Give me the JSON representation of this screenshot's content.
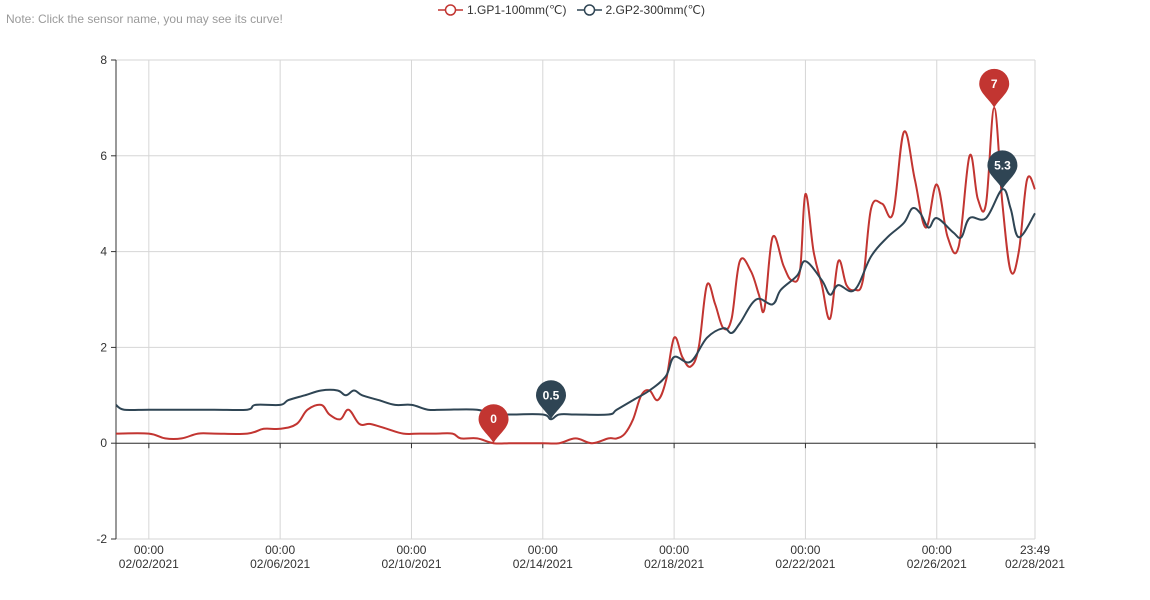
{
  "note": "Note: Click the sensor name, you may see its curve!",
  "colors": {
    "series1": "#c23531",
    "series2": "#2f4554",
    "grid": "#d6d6d6",
    "axis": "#333333",
    "note": "#9a9a9a"
  },
  "legend": [
    {
      "label": "1.GP1-100mm(℃)",
      "color": "#c23531"
    },
    {
      "label": "2.GP2-300mm(℃)",
      "color": "#2f4554"
    }
  ],
  "chart_data": {
    "type": "line",
    "ylim": [
      -2,
      8
    ],
    "yticks": [
      -2,
      0,
      2,
      4,
      6,
      8
    ],
    "xlim": [
      "2021-02-01T00:00",
      "2021-02-28T23:49"
    ],
    "grid": true,
    "legend_position": "top-center",
    "xticks": [
      {
        "date": "2021-02-02T00:00",
        "time": "00:00",
        "day": "02/02/2021"
      },
      {
        "date": "2021-02-06T00:00",
        "time": "00:00",
        "day": "02/06/2021"
      },
      {
        "date": "2021-02-10T00:00",
        "time": "00:00",
        "day": "02/10/2021"
      },
      {
        "date": "2021-02-14T00:00",
        "time": "00:00",
        "day": "02/14/2021"
      },
      {
        "date": "2021-02-18T00:00",
        "time": "00:00",
        "day": "02/18/2021"
      },
      {
        "date": "2021-02-22T00:00",
        "time": "00:00",
        "day": "02/22/2021"
      },
      {
        "date": "2021-02-26T00:00",
        "time": "00:00",
        "day": "02/26/2021"
      },
      {
        "date": "2021-02-28T23:49",
        "time": "23:49",
        "day": "02/28/2021"
      }
    ],
    "series": [
      {
        "name": "1.GP1-100mm(℃)",
        "color": "#c23531",
        "points": [
          [
            "2021-02-01T00:00",
            0.2
          ],
          [
            "2021-02-02T00:00",
            0.2
          ],
          [
            "2021-02-02T12:00",
            0.1
          ],
          [
            "2021-02-03T00:00",
            0.1
          ],
          [
            "2021-02-03T12:00",
            0.2
          ],
          [
            "2021-02-04T00:00",
            0.2
          ],
          [
            "2021-02-05T00:00",
            0.2
          ],
          [
            "2021-02-05T12:00",
            0.3
          ],
          [
            "2021-02-06T00:00",
            0.3
          ],
          [
            "2021-02-06T12:00",
            0.4
          ],
          [
            "2021-02-06T20:00",
            0.7
          ],
          [
            "2021-02-07T06:00",
            0.8
          ],
          [
            "2021-02-07T12:00",
            0.6
          ],
          [
            "2021-02-07T20:00",
            0.5
          ],
          [
            "2021-02-08T02:00",
            0.7
          ],
          [
            "2021-02-08T10:00",
            0.4
          ],
          [
            "2021-02-08T18:00",
            0.4
          ],
          [
            "2021-02-09T06:00",
            0.3
          ],
          [
            "2021-02-09T18:00",
            0.2
          ],
          [
            "2021-02-10T06:00",
            0.2
          ],
          [
            "2021-02-10T18:00",
            0.2
          ],
          [
            "2021-02-11T06:00",
            0.2
          ],
          [
            "2021-02-11T12:00",
            0.1
          ],
          [
            "2021-02-12T00:00",
            0.1
          ],
          [
            "2021-02-12T12:00",
            0.0
          ],
          [
            "2021-02-13T00:00",
            0.0
          ],
          [
            "2021-02-13T12:00",
            0.0
          ],
          [
            "2021-02-14T00:00",
            0.0
          ],
          [
            "2021-02-14T12:00",
            0.0
          ],
          [
            "2021-02-15T00:00",
            0.1
          ],
          [
            "2021-02-15T12:00",
            0.0
          ],
          [
            "2021-02-16T00:00",
            0.1
          ],
          [
            "2021-02-16T06:00",
            0.1
          ],
          [
            "2021-02-16T12:00",
            0.2
          ],
          [
            "2021-02-16T18:00",
            0.5
          ],
          [
            "2021-02-17T00:00",
            1.0
          ],
          [
            "2021-02-17T06:00",
            1.1
          ],
          [
            "2021-02-17T12:00",
            0.9
          ],
          [
            "2021-02-17T18:00",
            1.3
          ],
          [
            "2021-02-18T00:00",
            2.2
          ],
          [
            "2021-02-18T06:00",
            1.8
          ],
          [
            "2021-02-18T12:00",
            1.6
          ],
          [
            "2021-02-18T18:00",
            2.0
          ],
          [
            "2021-02-19T00:00",
            3.3
          ],
          [
            "2021-02-19T06:00",
            2.9
          ],
          [
            "2021-02-19T12:00",
            2.4
          ],
          [
            "2021-02-19T18:00",
            2.6
          ],
          [
            "2021-02-20T00:00",
            3.8
          ],
          [
            "2021-02-20T08:00",
            3.6
          ],
          [
            "2021-02-20T14:00",
            3.1
          ],
          [
            "2021-02-20T18:00",
            2.8
          ],
          [
            "2021-02-21T00:00",
            4.3
          ],
          [
            "2021-02-21T08:00",
            3.7
          ],
          [
            "2021-02-21T14:00",
            3.4
          ],
          [
            "2021-02-21T20:00",
            3.6
          ],
          [
            "2021-02-22T00:00",
            5.2
          ],
          [
            "2021-02-22T06:00",
            4.0
          ],
          [
            "2021-02-22T12:00",
            3.3
          ],
          [
            "2021-02-22T18:00",
            2.6
          ],
          [
            "2021-02-23T00:00",
            3.8
          ],
          [
            "2021-02-23T06:00",
            3.3
          ],
          [
            "2021-02-23T12:00",
            3.2
          ],
          [
            "2021-02-23T18:00",
            3.4
          ],
          [
            "2021-02-24T00:00",
            4.9
          ],
          [
            "2021-02-24T08:00",
            5.0
          ],
          [
            "2021-02-24T16:00",
            4.8
          ],
          [
            "2021-02-25T00:00",
            6.5
          ],
          [
            "2021-02-25T08:00",
            5.5
          ],
          [
            "2021-02-25T16:00",
            4.5
          ],
          [
            "2021-02-26T00:00",
            5.4
          ],
          [
            "2021-02-26T08:00",
            4.3
          ],
          [
            "2021-02-26T16:00",
            4.1
          ],
          [
            "2021-02-27T00:00",
            6.0
          ],
          [
            "2021-02-27T06:00",
            5.1
          ],
          [
            "2021-02-27T12:00",
            5.0
          ],
          [
            "2021-02-27T18:00",
            7.0
          ],
          [
            "2021-02-28T00:00",
            5.0
          ],
          [
            "2021-02-28T06:00",
            3.6
          ],
          [
            "2021-02-28T12:00",
            4.0
          ],
          [
            "2021-02-28T18:00",
            5.5
          ],
          [
            "2021-02-28T23:49",
            5.3
          ]
        ],
        "markers": [
          {
            "date": "2021-02-12T12:00",
            "value": 0,
            "label": "0"
          },
          {
            "date": "2021-02-27T18:00",
            "value": 7,
            "label": "7"
          }
        ]
      },
      {
        "name": "2.GP2-300mm(℃)",
        "color": "#2f4554",
        "points": [
          [
            "2021-02-01T00:00",
            0.8
          ],
          [
            "2021-02-01T06:00",
            0.7
          ],
          [
            "2021-02-02T00:00",
            0.7
          ],
          [
            "2021-02-03T00:00",
            0.7
          ],
          [
            "2021-02-04T00:00",
            0.7
          ],
          [
            "2021-02-05T00:00",
            0.7
          ],
          [
            "2021-02-05T06:00",
            0.8
          ],
          [
            "2021-02-06T00:00",
            0.8
          ],
          [
            "2021-02-06T06:00",
            0.9
          ],
          [
            "2021-02-06T18:00",
            1.0
          ],
          [
            "2021-02-07T06:00",
            1.1
          ],
          [
            "2021-02-07T18:00",
            1.1
          ],
          [
            "2021-02-08T00:00",
            1.0
          ],
          [
            "2021-02-08T06:00",
            1.1
          ],
          [
            "2021-02-08T12:00",
            1.0
          ],
          [
            "2021-02-09T00:00",
            0.9
          ],
          [
            "2021-02-09T12:00",
            0.8
          ],
          [
            "2021-02-10T00:00",
            0.8
          ],
          [
            "2021-02-10T12:00",
            0.7
          ],
          [
            "2021-02-11T00:00",
            0.7
          ],
          [
            "2021-02-12T00:00",
            0.7
          ],
          [
            "2021-02-12T12:00",
            0.6
          ],
          [
            "2021-02-13T00:00",
            0.6
          ],
          [
            "2021-02-14T00:00",
            0.6
          ],
          [
            "2021-02-14T06:00",
            0.5
          ],
          [
            "2021-02-14T12:00",
            0.6
          ],
          [
            "2021-02-15T00:00",
            0.6
          ],
          [
            "2021-02-16T00:00",
            0.6
          ],
          [
            "2021-02-16T06:00",
            0.7
          ],
          [
            "2021-02-16T18:00",
            0.9
          ],
          [
            "2021-02-17T06:00",
            1.1
          ],
          [
            "2021-02-17T18:00",
            1.4
          ],
          [
            "2021-02-18T00:00",
            1.8
          ],
          [
            "2021-02-18T12:00",
            1.7
          ],
          [
            "2021-02-19T00:00",
            2.2
          ],
          [
            "2021-02-19T12:00",
            2.4
          ],
          [
            "2021-02-19T18:00",
            2.3
          ],
          [
            "2021-02-20T00:00",
            2.5
          ],
          [
            "2021-02-20T12:00",
            3.0
          ],
          [
            "2021-02-21T00:00",
            2.9
          ],
          [
            "2021-02-21T06:00",
            3.2
          ],
          [
            "2021-02-21T18:00",
            3.5
          ],
          [
            "2021-02-22T00:00",
            3.8
          ],
          [
            "2021-02-22T12:00",
            3.4
          ],
          [
            "2021-02-22T18:00",
            3.1
          ],
          [
            "2021-02-23T00:00",
            3.3
          ],
          [
            "2021-02-23T12:00",
            3.2
          ],
          [
            "2021-02-24T00:00",
            3.9
          ],
          [
            "2021-02-24T12:00",
            4.3
          ],
          [
            "2021-02-25T00:00",
            4.6
          ],
          [
            "2021-02-25T06:00",
            4.9
          ],
          [
            "2021-02-25T12:00",
            4.8
          ],
          [
            "2021-02-25T18:00",
            4.5
          ],
          [
            "2021-02-26T00:00",
            4.7
          ],
          [
            "2021-02-26T12:00",
            4.4
          ],
          [
            "2021-02-26T18:00",
            4.3
          ],
          [
            "2021-02-27T00:00",
            4.7
          ],
          [
            "2021-02-27T12:00",
            4.7
          ],
          [
            "2021-02-28T00:00",
            5.3
          ],
          [
            "2021-02-28T06:00",
            4.9
          ],
          [
            "2021-02-28T12:00",
            4.3
          ],
          [
            "2021-02-28T23:49",
            4.8
          ]
        ],
        "markers": [
          {
            "date": "2021-02-14T06:00",
            "value": 0.5,
            "label": "0.5"
          },
          {
            "date": "2021-02-28T00:00",
            "value": 5.3,
            "label": "5.3"
          }
        ]
      }
    ]
  }
}
